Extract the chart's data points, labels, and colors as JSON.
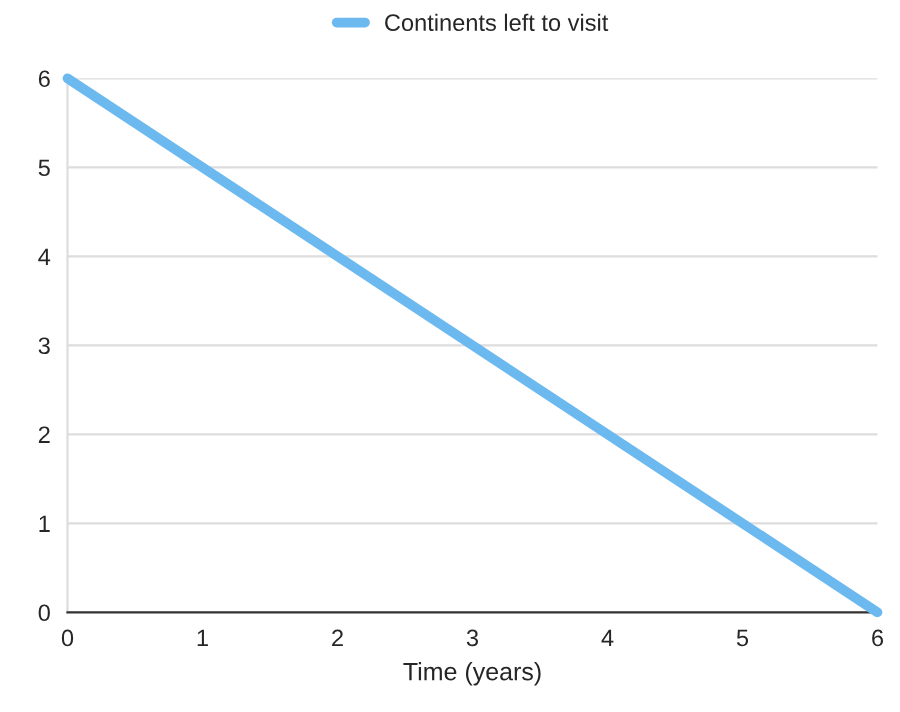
{
  "chart_data": {
    "type": "line",
    "xlabel": "Time (years)",
    "x": [
      0,
      6
    ],
    "series": [
      {
        "name": "Continents left to visit",
        "color": "#6cb9f0",
        "values": [
          6,
          0
        ]
      }
    ],
    "xlim": [
      0,
      6
    ],
    "xticks": [
      0,
      1,
      2,
      3,
      4,
      5,
      6
    ],
    "ylim": [
      0,
      6
    ],
    "yticks": [
      0,
      1,
      2,
      3,
      4,
      5,
      6
    ],
    "grid": "y",
    "legend": "top",
    "marker": "none",
    "line_style": "solid"
  }
}
